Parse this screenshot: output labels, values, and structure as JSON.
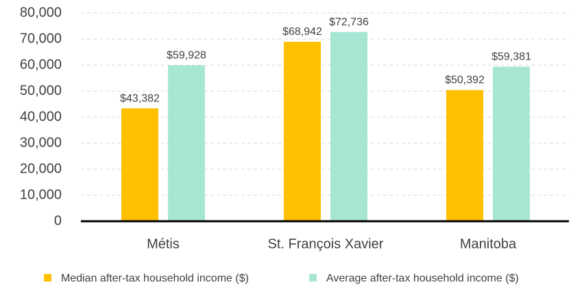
{
  "chart_data": {
    "type": "bar",
    "categories": [
      "Métis",
      "St. François Xavier",
      "Manitoba"
    ],
    "series": [
      {
        "name": "Median after-tax household income ($)",
        "color": "#ffc000",
        "values": [
          43382,
          68942,
          50392
        ],
        "value_labels": [
          "$43,382",
          "$68,942",
          "$50,392"
        ]
      },
      {
        "name": "Average after-tax household income ($)",
        "color": "#a8e6d4",
        "values": [
          59928,
          72736,
          59381
        ],
        "value_labels": [
          "$59,928",
          "$72,736",
          "$59,381"
        ]
      }
    ],
    "ylim": [
      0,
      80000
    ],
    "yticks": [
      0,
      {
        "value": 10000,
        "label": "10,000"
      },
      {
        "value": 20000,
        "label": "20,000"
      },
      {
        "value": 30000,
        "label": "30,000"
      },
      {
        "value": 40000,
        "label": "40,000"
      },
      {
        "value": 50000,
        "label": "50,000"
      },
      {
        "value": 60000,
        "label": "60,000"
      },
      {
        "value": 70000,
        "label": "70,000"
      },
      {
        "value": 80000,
        "label": "80,000"
      }
    ],
    "grid": true,
    "legend": "bottom"
  }
}
